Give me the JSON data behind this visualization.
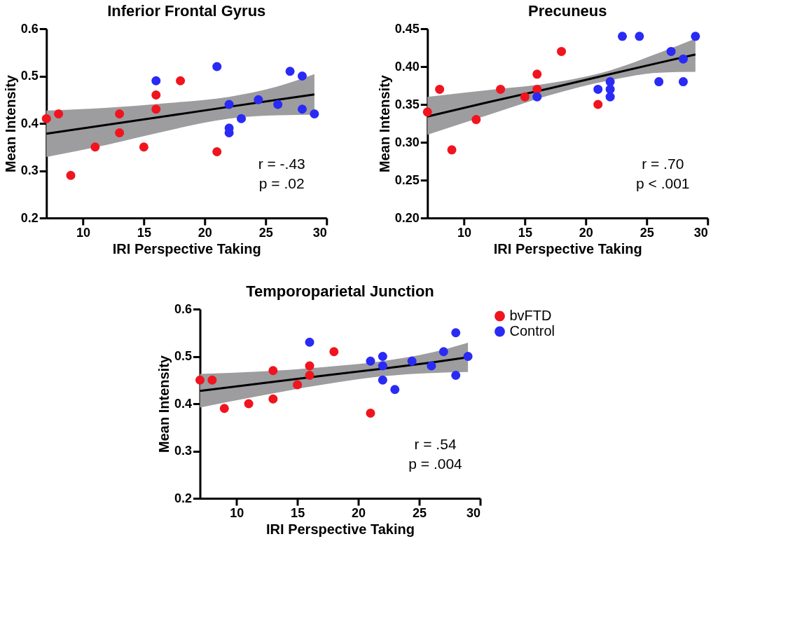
{
  "chart_data": [
    {
      "type": "scatter",
      "title": "Inferior Frontal Gyrus",
      "xlabel": "IRI Perspective Taking",
      "ylabel": "Mean Intensity",
      "xlim": [
        7,
        30
      ],
      "xticks": [
        10,
        15,
        20,
        25,
        30
      ],
      "ylim": [
        0.2,
        0.6
      ],
      "yticks": [
        0.2,
        0.3,
        0.4,
        0.5,
        0.6
      ],
      "marker": "circle",
      "legend": false,
      "annotations": [
        "r = -.43",
        "p = .02"
      ],
      "series": [
        {
          "type": "line",
          "color": "#000000",
          "marker": "none",
          "x": [
            7,
            12,
            17,
            22,
            26,
            29
          ],
          "values": [
            0.378,
            0.397,
            0.416,
            0.435,
            0.45,
            0.461
          ],
          "lower": [
            0.329,
            0.355,
            0.385,
            0.41,
            0.417,
            0.418
          ],
          "upper": [
            0.427,
            0.433,
            0.443,
            0.456,
            0.478,
            0.504
          ]
        },
        {
          "color": "#f0141e",
          "x": [
            7,
            8,
            9,
            11,
            13,
            13,
            15,
            16,
            16,
            18,
            21
          ],
          "values": [
            0.41,
            0.42,
            0.29,
            0.35,
            0.42,
            0.38,
            0.35,
            0.46,
            0.43,
            0.49,
            0.34
          ]
        },
        {
          "color": "#2a2af5",
          "x": [
            16,
            21,
            22,
            22,
            22,
            23,
            24.4,
            26,
            27,
            28,
            28,
            29
          ],
          "values": [
            0.49,
            0.52,
            0.44,
            0.39,
            0.38,
            0.41,
            0.45,
            0.44,
            0.51,
            0.5,
            0.43,
            0.42
          ]
        }
      ]
    },
    {
      "type": "scatter",
      "title": "Precuneus",
      "xlabel": "IRI Perspective Taking",
      "ylabel": "Mean Intensity",
      "xlim": [
        7,
        30
      ],
      "xticks": [
        10,
        15,
        20,
        25,
        30
      ],
      "ylim": [
        0.2,
        0.45
      ],
      "yticks": [
        {
          "value": 0.2,
          "label": "0.20"
        },
        {
          "value": 0.25,
          "label": "0.25"
        },
        {
          "value": 0.3,
          "label": "0.30"
        },
        {
          "value": 0.35,
          "label": "0.35"
        },
        {
          "value": 0.4,
          "label": "0.40"
        },
        {
          "value": 0.45,
          "label": "0.45"
        }
      ],
      "marker": "circle",
      "legend": false,
      "annotations": [
        "r = .70",
        "p < .001"
      ],
      "series": [
        {
          "type": "line",
          "color": "#000000",
          "marker": "none",
          "x": [
            7,
            12,
            17,
            22,
            26,
            29
          ],
          "values": [
            0.334,
            0.353,
            0.371,
            0.39,
            0.405,
            0.416
          ],
          "lower": [
            0.31,
            0.336,
            0.362,
            0.382,
            0.392,
            0.393
          ],
          "upper": [
            0.36,
            0.369,
            0.378,
            0.395,
            0.418,
            0.437
          ]
        },
        {
          "color": "#f0141e",
          "x": [
            7,
            8,
            9,
            11,
            13,
            15,
            16,
            16,
            18,
            21
          ],
          "values": [
            0.34,
            0.37,
            0.29,
            0.33,
            0.37,
            0.36,
            0.39,
            0.37,
            0.42,
            0.35
          ]
        },
        {
          "color": "#2a2af5",
          "x": [
            16,
            21,
            22,
            22,
            22,
            23,
            24.4,
            26,
            27,
            28,
            28,
            29
          ],
          "values": [
            0.36,
            0.37,
            0.38,
            0.37,
            0.36,
            0.44,
            0.44,
            0.38,
            0.42,
            0.41,
            0.38,
            0.44
          ]
        }
      ]
    },
    {
      "type": "scatter",
      "title": "Temporoparietal Junction",
      "xlabel": "IRI Perspective Taking",
      "ylabel": "Mean Intensity",
      "xlim": [
        7,
        30
      ],
      "xticks": [
        10,
        15,
        20,
        25,
        30
      ],
      "ylim": [
        0.2,
        0.6
      ],
      "yticks": [
        0.2,
        0.3,
        0.4,
        0.5,
        0.6
      ],
      "marker": "circle",
      "legend": "right",
      "annotations": [
        "r = .54",
        "p = .004"
      ],
      "series": [
        {
          "type": "line",
          "color": "#000000",
          "marker": "none",
          "x": [
            7,
            12,
            17,
            22,
            26,
            29
          ],
          "values": [
            0.427,
            0.443,
            0.459,
            0.474,
            0.487,
            0.498
          ],
          "lower": [
            0.392,
            0.417,
            0.44,
            0.458,
            0.465,
            0.467
          ],
          "upper": [
            0.463,
            0.468,
            0.477,
            0.49,
            0.508,
            0.529
          ]
        },
        {
          "name": "bvFTD",
          "color": "#f0141e",
          "x": [
            7,
            8,
            9,
            11,
            13,
            13,
            15,
            16,
            16,
            18,
            21
          ],
          "values": [
            0.45,
            0.45,
            0.39,
            0.4,
            0.47,
            0.41,
            0.44,
            0.48,
            0.46,
            0.51,
            0.38
          ]
        },
        {
          "name": "Control",
          "color": "#2a2af5",
          "x": [
            16,
            21,
            22,
            22,
            22,
            23,
            24.4,
            26,
            27,
            28,
            28,
            29
          ],
          "values": [
            0.53,
            0.49,
            0.5,
            0.48,
            0.45,
            0.43,
            0.49,
            0.48,
            0.51,
            0.55,
            0.46,
            0.5
          ]
        }
      ]
    }
  ]
}
